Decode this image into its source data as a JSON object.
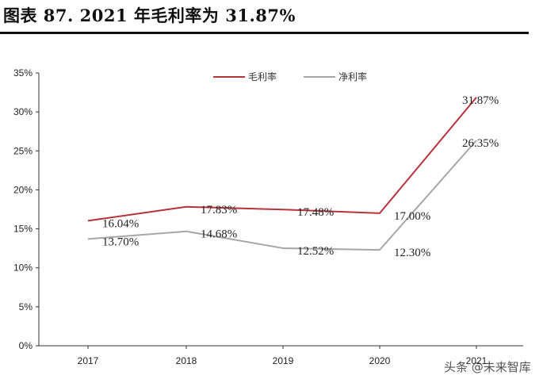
{
  "figure": {
    "title": "图表 87.  2021 年毛利率为 31.87%"
  },
  "chart_data": {
    "type": "line",
    "categories": [
      "2017",
      "2018",
      "2019",
      "2020",
      "2021"
    ],
    "series": [
      {
        "name": "毛利率",
        "color": "#b8323a",
        "values": [
          16.04,
          17.83,
          17.48,
          17.0,
          31.87
        ],
        "labels": [
          "16.04%",
          "17.83%",
          "17.48%",
          "17.00%",
          "31.87%"
        ]
      },
      {
        "name": "净利率",
        "color": "#a6a6a6",
        "values": [
          13.7,
          14.68,
          12.52,
          12.3,
          26.35
        ],
        "labels": [
          "13.70%",
          "14.68%",
          "12.52%",
          "12.30%",
          "26.35%"
        ]
      }
    ],
    "ylim": [
      0,
      35
    ],
    "yticks": [
      "0%",
      "5%",
      "10%",
      "15%",
      "20%",
      "25%",
      "30%",
      "35%"
    ],
    "ytick_values": [
      0,
      5,
      10,
      15,
      20,
      25,
      30,
      35
    ],
    "legend_position": "top-center",
    "grid": false
  },
  "watermark": {
    "text": "头条 @未来智库"
  }
}
